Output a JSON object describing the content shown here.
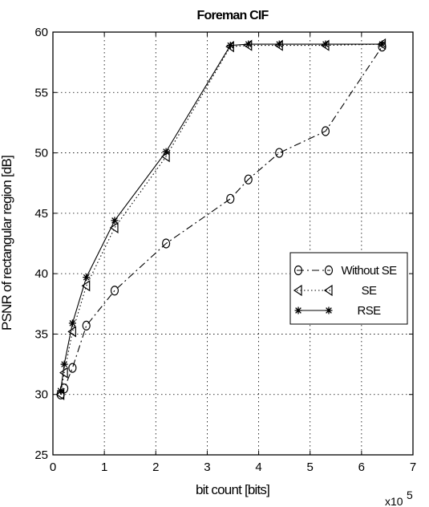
{
  "chart_data": {
    "type": "line",
    "title": "Foreman CIF",
    "xlabel": "bit count [bits]",
    "ylabel": "PSNR of rectangular region [dB]",
    "x_multiplier": "x10",
    "x_multiplier_exp": "5",
    "xlim": [
      0,
      7
    ],
    "ylim": [
      25,
      60
    ],
    "xticks": [
      0,
      1,
      2,
      3,
      4,
      5,
      6,
      7
    ],
    "yticks": [
      25,
      30,
      35,
      40,
      45,
      50,
      55,
      60
    ],
    "grid": true,
    "legend_position": "right",
    "series": [
      {
        "name": "Without SE",
        "marker": "circle",
        "linestyle": "dash-dot",
        "x": [
          0.15,
          0.22,
          0.38,
          0.65,
          1.2,
          2.2,
          3.45,
          3.8,
          4.4,
          5.3,
          6.4
        ],
        "y": [
          30.0,
          30.5,
          32.2,
          35.7,
          38.6,
          42.5,
          46.2,
          47.8,
          50.0,
          51.8,
          58.8
        ]
      },
      {
        "name": "SE",
        "marker": "triangle-left",
        "linestyle": "dotted",
        "x": [
          0.15,
          0.22,
          0.38,
          0.65,
          1.2,
          2.2,
          3.45,
          3.8,
          4.4,
          5.3,
          6.4
        ],
        "y": [
          30.0,
          31.8,
          35.2,
          39.0,
          43.8,
          49.7,
          58.8,
          58.9,
          58.9,
          58.9,
          59.0
        ]
      },
      {
        "name": "RSE",
        "marker": "star",
        "linestyle": "solid",
        "x": [
          0.15,
          0.22,
          0.38,
          0.65,
          1.2,
          2.2,
          3.45,
          3.8,
          4.4,
          5.3,
          6.4
        ],
        "y": [
          30.3,
          32.5,
          35.9,
          39.7,
          44.4,
          50.1,
          58.9,
          59.0,
          59.0,
          59.0,
          59.0
        ]
      }
    ]
  }
}
